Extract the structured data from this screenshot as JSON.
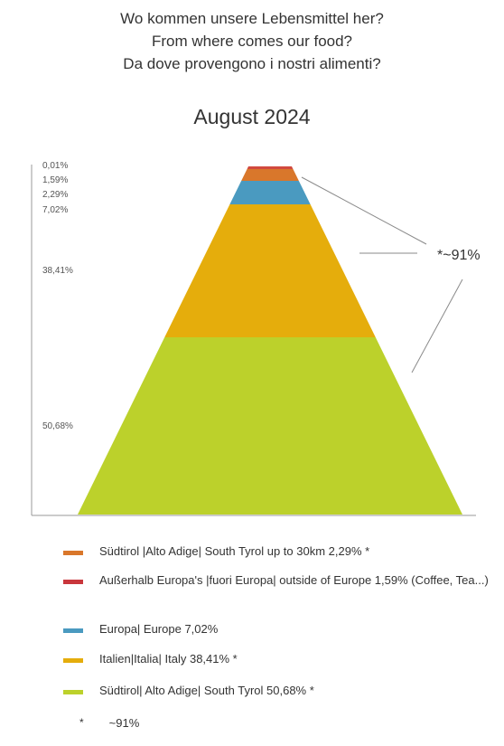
{
  "header": {
    "title_de": "Wo kommen unsere Lebensmittel her?",
    "title_en": "From where comes our food?",
    "title_it": "Da dove provengono i nostri alimenti?",
    "subtitle": "August 2024"
  },
  "chart_data": {
    "type": "pyramid",
    "segments": [
      {
        "label": "0,01%",
        "value": 0.01,
        "color": "#d24a3f"
      },
      {
        "label": "1,59%",
        "value": 1.59,
        "color": "#d9772b"
      },
      {
        "label": "2,29%",
        "value": 2.29,
        "color": "#4a9ac0"
      },
      {
        "label": "7,02%",
        "value": 7.02,
        "color": "#e5ad0c"
      },
      {
        "label": "38,41%",
        "value": 38.41,
        "color": "#e5ad0c"
      },
      {
        "label": "50,68%",
        "value": 50.68,
        "color": "#bcd12b"
      }
    ],
    "annotation": "*~91%"
  },
  "legend": {
    "items": [
      {
        "text": "Südtirol |Alto Adige| South Tyrol up to 30km 2,29% *",
        "color": "#d9772b"
      },
      {
        "text": "Außerhalb Europa's |fuori Europa| outside of Europe 1,59% (Coffee, Tea...)",
        "color": "#c9363c"
      },
      {
        "text": "Europa| Europe 7,02%",
        "color": "#4a9ac0"
      },
      {
        "text": "Italien|Italia| Italy 38,41% *",
        "color": "#e5ad0c"
      },
      {
        "text": "Südtirol| Alto Adige| South Tyrol 50,68% *",
        "color": "#bcd12b"
      }
    ],
    "footnote_symbol": "*",
    "footnote_text": "~91%"
  }
}
